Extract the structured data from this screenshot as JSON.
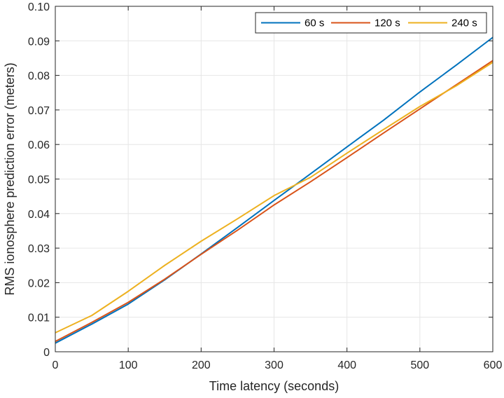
{
  "chart_data": {
    "type": "line",
    "xlabel": "Time latency (seconds)",
    "ylabel": "RMS ionosphere prediction error (meters)",
    "xlim": [
      0,
      600
    ],
    "ylim": [
      0,
      0.1
    ],
    "xticks": [
      0,
      100,
      200,
      300,
      400,
      500,
      600
    ],
    "xtick_labels": [
      "0",
      "100",
      "200",
      "300",
      "400",
      "500",
      "600"
    ],
    "yticks": [
      0,
      0.01,
      0.02,
      0.03,
      0.04,
      0.05,
      0.06,
      0.07,
      0.08,
      0.09,
      0.1
    ],
    "ytick_labels": [
      "0",
      "0.01",
      "0.02",
      "0.03",
      "0.04",
      "0.05",
      "0.06",
      "0.07",
      "0.08",
      "0.09",
      "0.10"
    ],
    "grid": true,
    "legend_position": "top-right",
    "x": [
      0,
      50,
      100,
      150,
      200,
      250,
      300,
      350,
      400,
      450,
      500,
      550,
      600
    ],
    "series": [
      {
        "name": "60 s",
        "color": "#0072BD",
        "values": [
          0.0025,
          0.008,
          0.0138,
          0.0208,
          0.0283,
          0.036,
          0.0438,
          0.0515,
          0.0593,
          0.067,
          0.0752,
          0.083,
          0.091
        ]
      },
      {
        "name": "120 s",
        "color": "#D95319",
        "values": [
          0.003,
          0.0085,
          0.0143,
          0.021,
          0.0282,
          0.0352,
          0.0425,
          0.0492,
          0.0562,
          0.0633,
          0.0703,
          0.0773,
          0.0843
        ]
      },
      {
        "name": "240 s",
        "color": "#EDB120",
        "values": [
          0.0055,
          0.0105,
          0.0175,
          0.025,
          0.032,
          0.0385,
          0.0452,
          0.0505,
          0.0575,
          0.0643,
          0.071,
          0.077,
          0.0838
        ]
      }
    ]
  }
}
